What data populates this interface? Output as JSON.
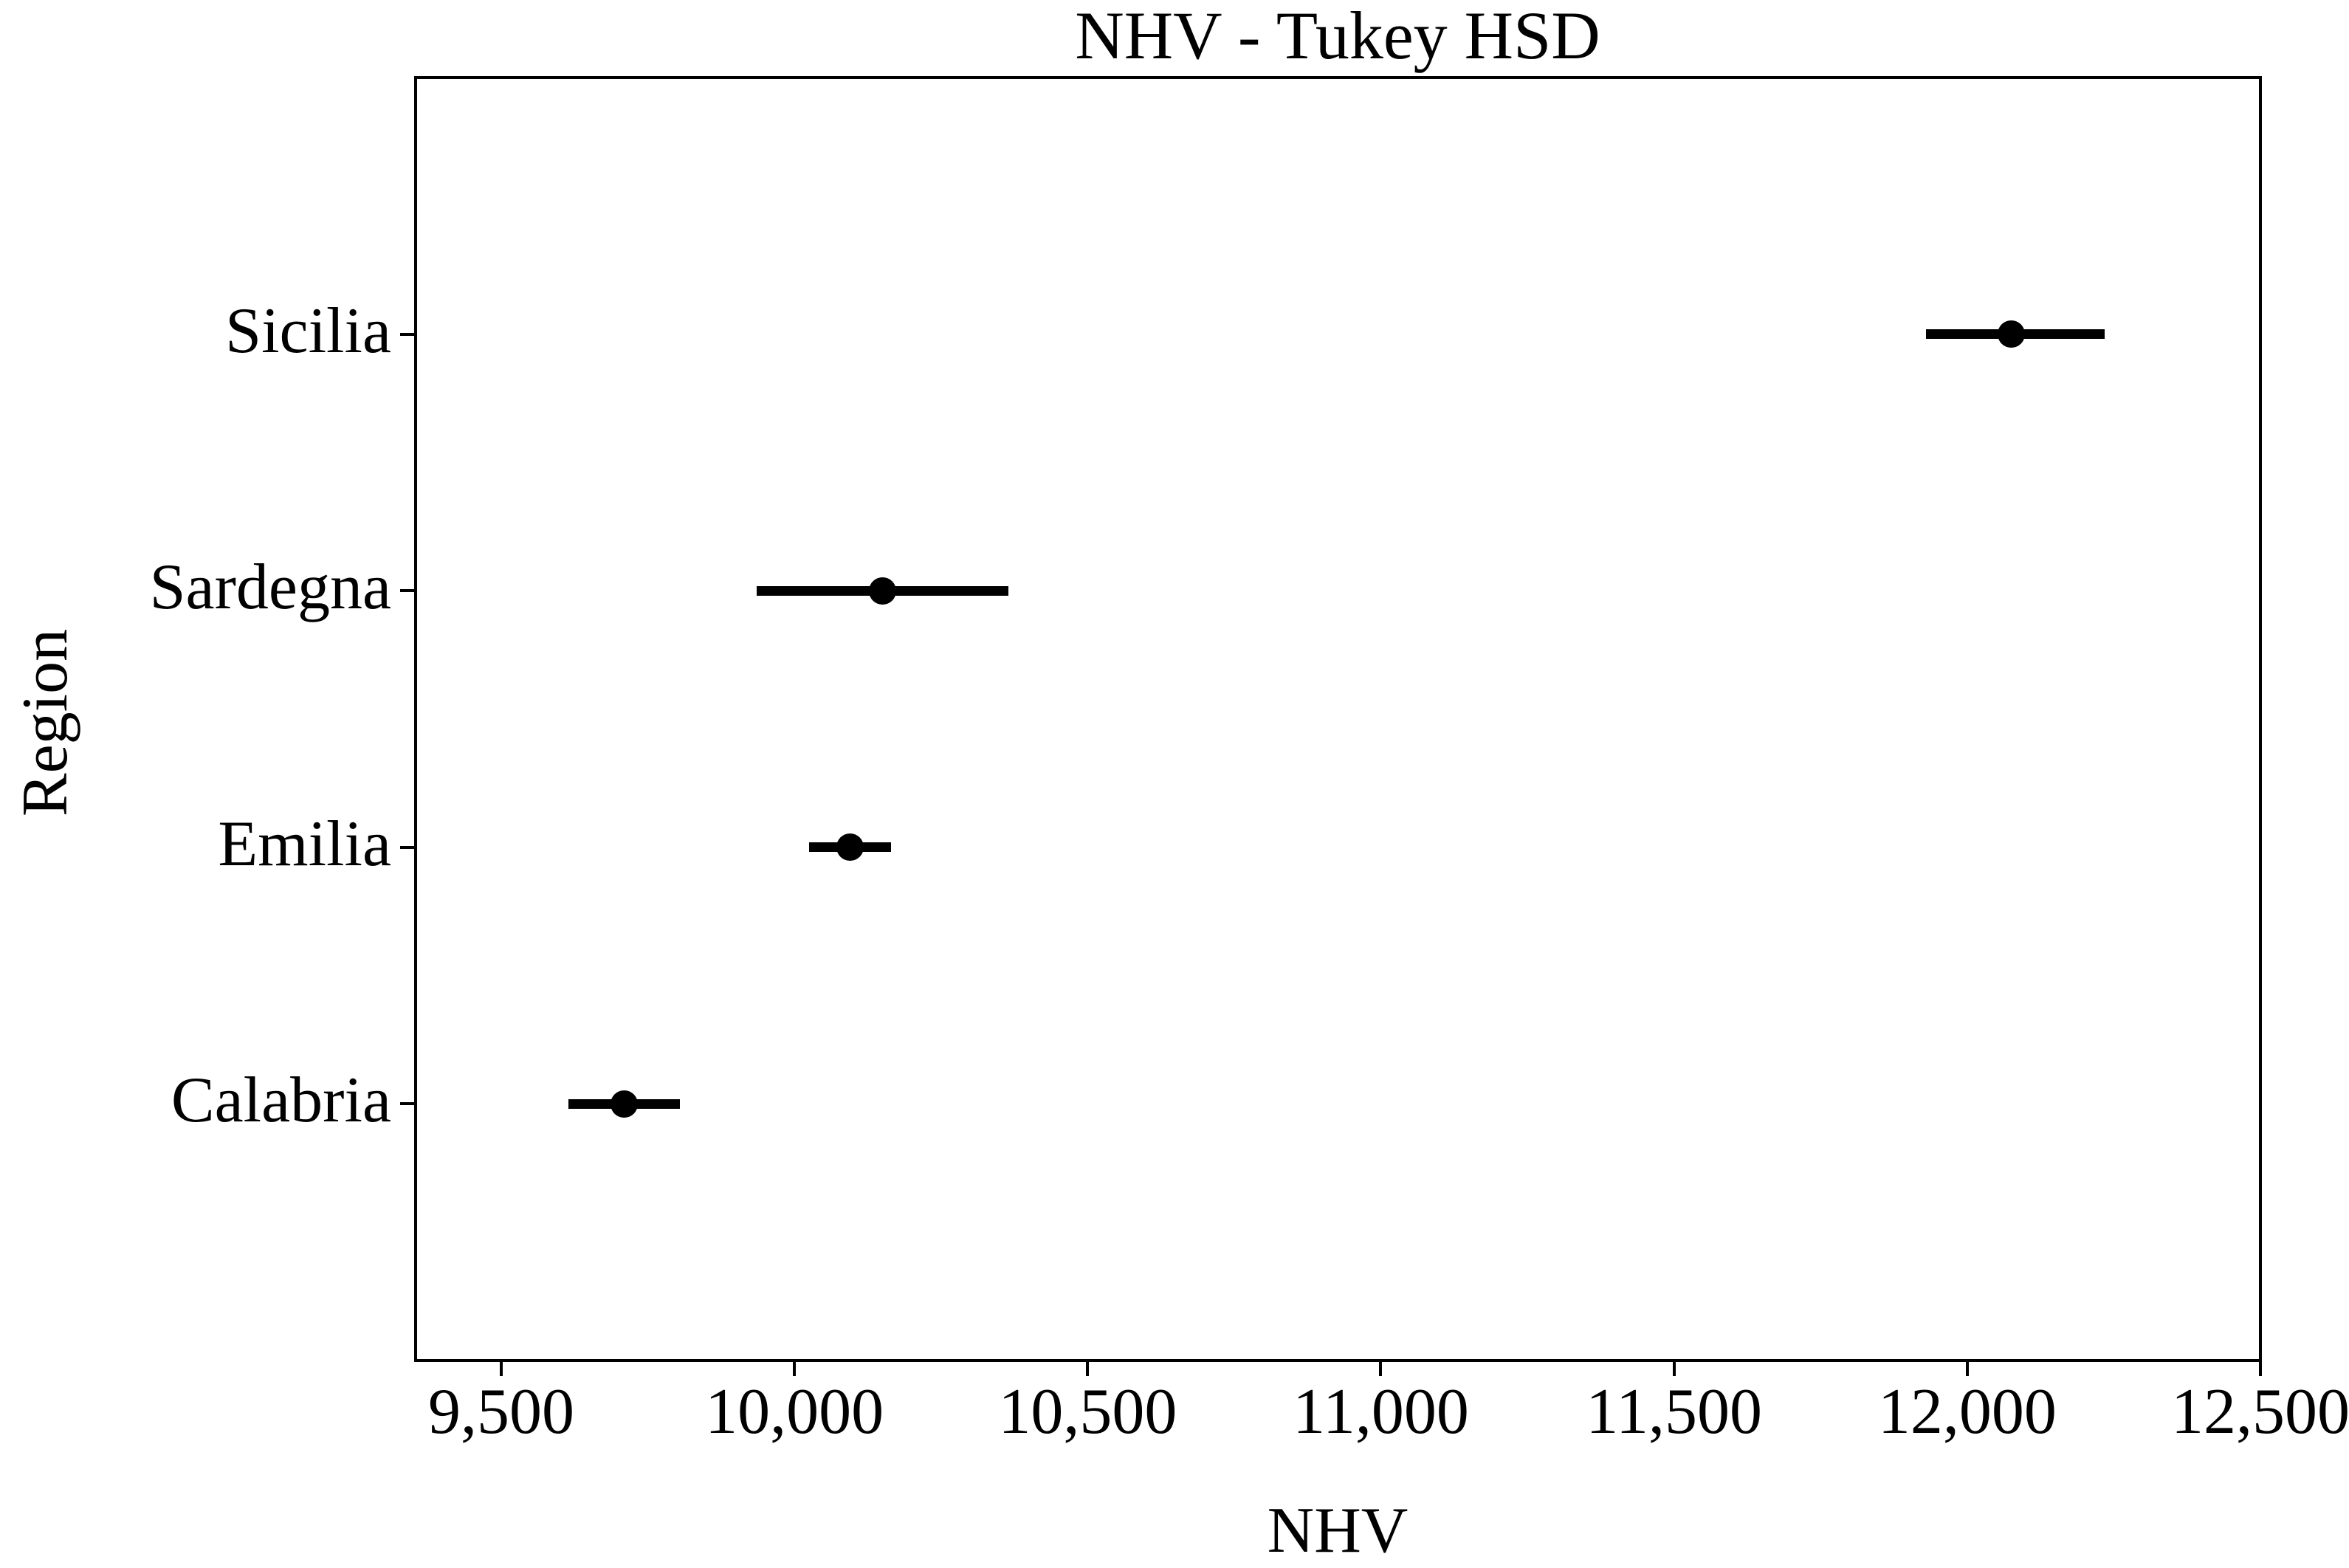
{
  "title": "NHV - Tukey HSD",
  "chart_data": {
    "type": "scatter",
    "style": "horizontal-errorbar (group means with Tukey HSD confidence intervals)",
    "title": "NHV - Tukey HSD",
    "xlabel": "NHV",
    "ylabel": "Region",
    "categories": [
      "Sicilia",
      "Sardegna",
      "Emilia",
      "Calabria"
    ],
    "points": [
      {
        "region": "Sicilia",
        "y_position": 4,
        "mean": 12075,
        "ci_low": 11930,
        "ci_high": 12235
      },
      {
        "region": "Sardegna",
        "y_position": 3,
        "mean": 10150,
        "ci_low": 9935,
        "ci_high": 10365
      },
      {
        "region": "Emilia",
        "y_position": 2,
        "mean": 10095,
        "ci_low": 10025,
        "ci_high": 10165
      },
      {
        "region": "Calabria",
        "y_position": 1,
        "mean": 9710,
        "ci_low": 9615,
        "ci_high": 9805
      }
    ],
    "x_ticks": [
      {
        "value": 9500,
        "label": "9,500"
      },
      {
        "value": 10000,
        "label": "10,000"
      },
      {
        "value": 10500,
        "label": "10,500"
      },
      {
        "value": 11000,
        "label": "11,000"
      },
      {
        "value": 11500,
        "label": "11,500"
      },
      {
        "value": 12000,
        "label": "12,000"
      },
      {
        "value": 12500,
        "label": "12,500"
      }
    ],
    "xlim": [
      9354,
      12500
    ],
    "ylim": [
      0,
      5
    ],
    "grid": false,
    "legend": null,
    "marker_color": "#000000",
    "line_color": "#000000",
    "background_color": "#ffffff"
  }
}
